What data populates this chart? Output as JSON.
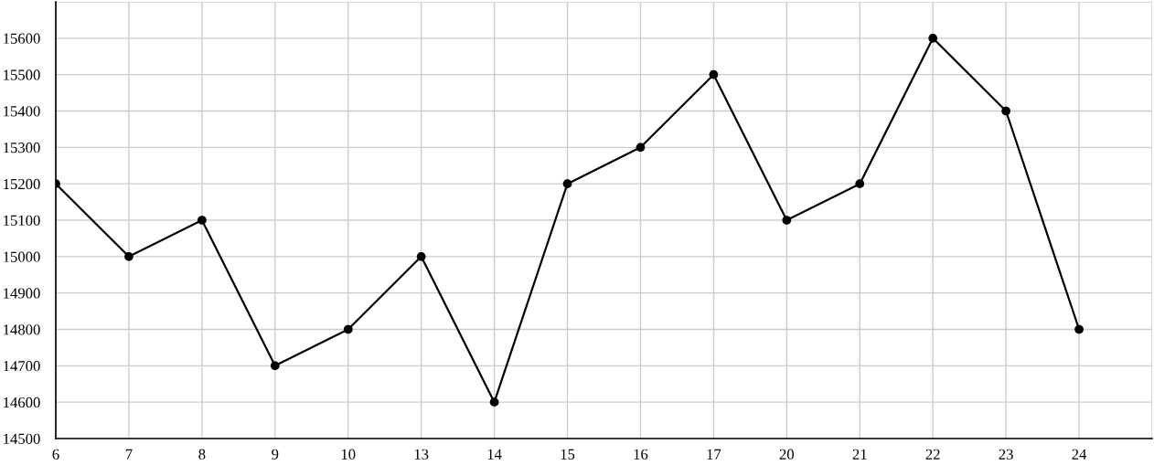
{
  "chart_data": {
    "type": "line",
    "categories": [
      "6",
      "7",
      "8",
      "9",
      "10",
      "13",
      "14",
      "15",
      "16",
      "17",
      "20",
      "21",
      "22",
      "23",
      "24",
      null
    ],
    "series": [
      {
        "color": "#000000",
        "values": [
          15200,
          15000,
          15100,
          14700,
          14800,
          15000,
          14600,
          15200,
          15300,
          15500,
          15100,
          15200,
          15600,
          15400,
          14800,
          null
        ]
      }
    ],
    "ylim": [
      14500,
      15700
    ],
    "yticks": [
      14500,
      14600,
      14700,
      14800,
      14900,
      15000,
      15100,
      15200,
      15300,
      15400,
      15500,
      15600,
      {
        "value": 15700,
        "label": null
      }
    ],
    "grid": true,
    "marker": "circle",
    "line_style": "solid"
  }
}
